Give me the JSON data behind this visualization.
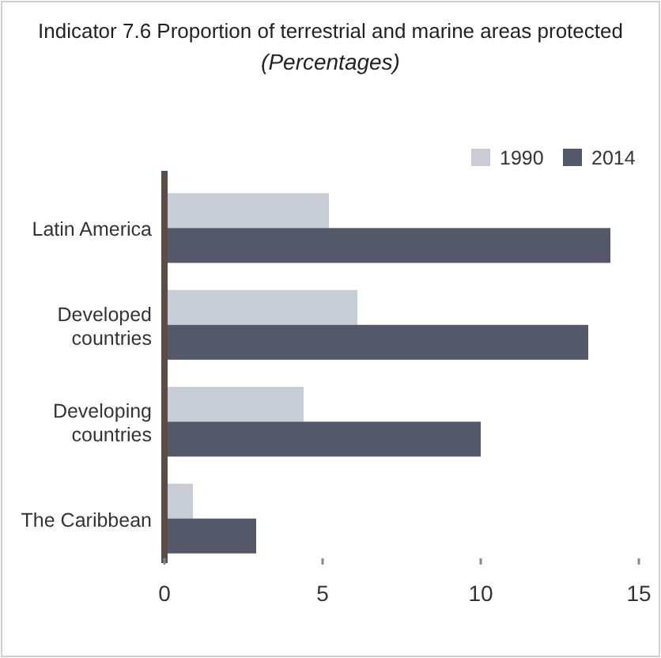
{
  "chart_data": {
    "type": "bar",
    "orientation": "horizontal",
    "title": "Indicator 7.6 Proportion of terrestrial and marine areas protected",
    "subtitle": "(Percentages)",
    "categories": [
      "Latin America",
      "Developed countries",
      "Developing countries",
      "The Caribbean"
    ],
    "series": [
      {
        "name": "1990",
        "color": "#c7ccd5",
        "values": [
          5.2,
          6.1,
          4.4,
          0.9
        ]
      },
      {
        "name": "2014",
        "color": "#545869",
        "values": [
          14.1,
          13.4,
          10.0,
          2.9
        ]
      }
    ],
    "xlim": [
      0,
      15
    ],
    "xticks": [
      0,
      5,
      10,
      15
    ],
    "legend": "top right",
    "grid": false
  }
}
